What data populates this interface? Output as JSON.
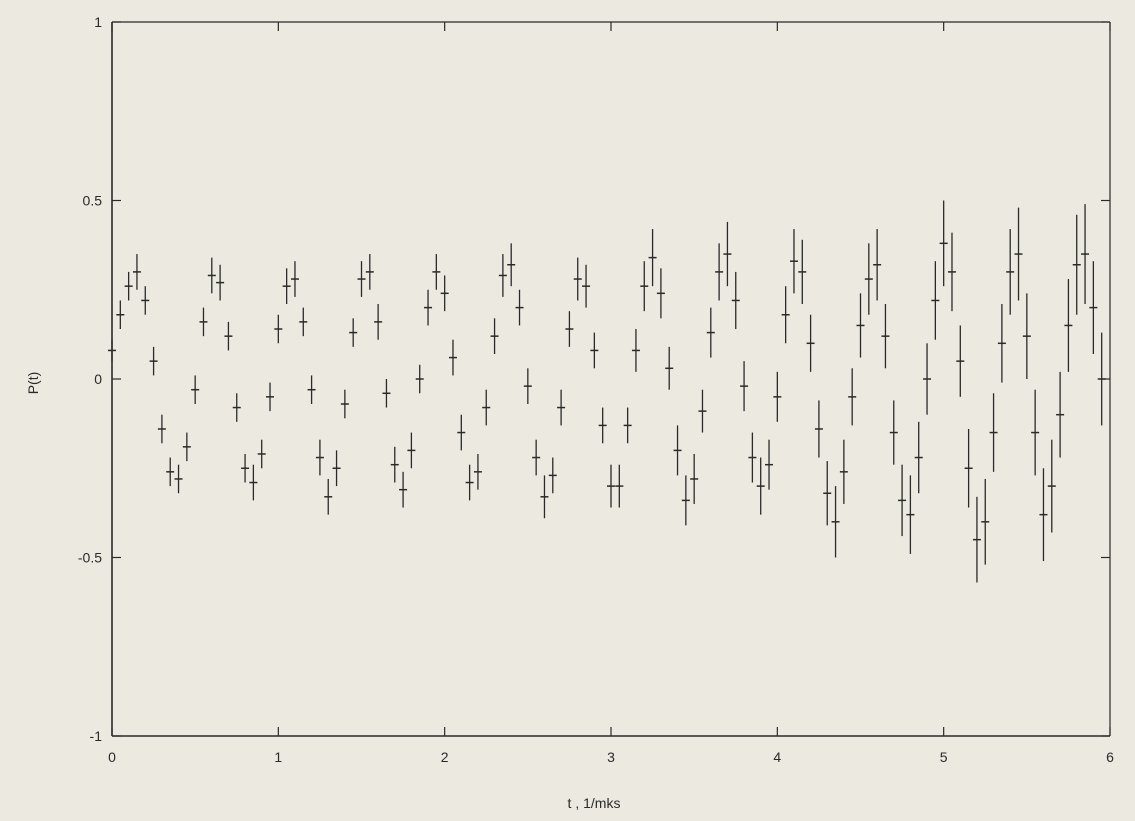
{
  "chart_data": {
    "type": "scatter",
    "title": "",
    "xlabel": "t , 1/mks",
    "ylabel": "P(t)",
    "xlim": [
      0,
      6
    ],
    "ylim": [
      -1,
      1
    ],
    "x_ticks": [
      "0",
      "1",
      "2",
      "3",
      "4",
      "5",
      "6"
    ],
    "y_ticks": [
      "-1",
      "-0.5",
      "0",
      "0.5",
      "1"
    ],
    "grid": false,
    "legend": "none",
    "error_bars": true,
    "colors": {
      "background": "#ece9e1",
      "ink": "#2a2a2a"
    },
    "series": [
      {
        "points": [
          [
            0.0,
            0.08,
            0.03
          ],
          [
            0.05,
            0.18,
            0.04
          ],
          [
            0.1,
            0.26,
            0.04
          ],
          [
            0.15,
            0.3,
            0.05
          ],
          [
            0.2,
            0.22,
            0.04
          ],
          [
            0.25,
            0.05,
            0.04
          ],
          [
            0.3,
            -0.14,
            0.04
          ],
          [
            0.35,
            -0.26,
            0.04
          ],
          [
            0.4,
            -0.28,
            0.04
          ],
          [
            0.45,
            -0.19,
            0.04
          ],
          [
            0.5,
            -0.03,
            0.04
          ],
          [
            0.55,
            0.16,
            0.04
          ],
          [
            0.6,
            0.29,
            0.05
          ],
          [
            0.65,
            0.27,
            0.05
          ],
          [
            0.7,
            0.12,
            0.04
          ],
          [
            0.75,
            -0.08,
            0.04
          ],
          [
            0.8,
            -0.25,
            0.04
          ],
          [
            0.85,
            -0.29,
            0.05
          ],
          [
            0.9,
            -0.21,
            0.04
          ],
          [
            0.95,
            -0.05,
            0.04
          ],
          [
            1.0,
            0.14,
            0.04
          ],
          [
            1.05,
            0.26,
            0.05
          ],
          [
            1.1,
            0.28,
            0.05
          ],
          [
            1.15,
            0.16,
            0.04
          ],
          [
            1.2,
            -0.03,
            0.04
          ],
          [
            1.25,
            -0.22,
            0.05
          ],
          [
            1.3,
            -0.33,
            0.05
          ],
          [
            1.35,
            -0.25,
            0.05
          ],
          [
            1.4,
            -0.07,
            0.04
          ],
          [
            1.45,
            0.13,
            0.04
          ],
          [
            1.5,
            0.28,
            0.05
          ],
          [
            1.55,
            0.3,
            0.05
          ],
          [
            1.6,
            0.16,
            0.05
          ],
          [
            1.65,
            -0.04,
            0.04
          ],
          [
            1.7,
            -0.24,
            0.05
          ],
          [
            1.75,
            -0.31,
            0.05
          ],
          [
            1.8,
            -0.2,
            0.05
          ],
          [
            1.85,
            0.0,
            0.04
          ],
          [
            1.9,
            0.2,
            0.05
          ],
          [
            1.95,
            0.3,
            0.05
          ],
          [
            2.0,
            0.24,
            0.05
          ],
          [
            2.05,
            0.06,
            0.05
          ],
          [
            2.1,
            -0.15,
            0.05
          ],
          [
            2.15,
            -0.29,
            0.05
          ],
          [
            2.2,
            -0.26,
            0.05
          ],
          [
            2.25,
            -0.08,
            0.05
          ],
          [
            2.3,
            0.12,
            0.05
          ],
          [
            2.35,
            0.29,
            0.06
          ],
          [
            2.4,
            0.32,
            0.06
          ],
          [
            2.45,
            0.2,
            0.05
          ],
          [
            2.5,
            -0.02,
            0.05
          ],
          [
            2.55,
            -0.22,
            0.05
          ],
          [
            2.6,
            -0.33,
            0.06
          ],
          [
            2.65,
            -0.27,
            0.05
          ],
          [
            2.7,
            -0.08,
            0.05
          ],
          [
            2.75,
            0.14,
            0.05
          ],
          [
            2.8,
            0.28,
            0.06
          ],
          [
            2.85,
            0.26,
            0.06
          ],
          [
            2.9,
            0.08,
            0.05
          ],
          [
            2.95,
            -0.13,
            0.05
          ],
          [
            3.0,
            -0.3,
            0.06
          ],
          [
            3.05,
            -0.3,
            0.06
          ],
          [
            3.1,
            -0.13,
            0.05
          ],
          [
            3.15,
            0.08,
            0.06
          ],
          [
            3.2,
            0.26,
            0.07
          ],
          [
            3.25,
            0.34,
            0.08
          ],
          [
            3.3,
            0.24,
            0.07
          ],
          [
            3.35,
            0.03,
            0.06
          ],
          [
            3.4,
            -0.2,
            0.07
          ],
          [
            3.45,
            -0.34,
            0.07
          ],
          [
            3.5,
            -0.28,
            0.07
          ],
          [
            3.55,
            -0.09,
            0.06
          ],
          [
            3.6,
            0.13,
            0.07
          ],
          [
            3.65,
            0.3,
            0.08
          ],
          [
            3.7,
            0.35,
            0.09
          ],
          [
            3.75,
            0.22,
            0.08
          ],
          [
            3.8,
            -0.02,
            0.07
          ],
          [
            3.85,
            -0.22,
            0.07
          ],
          [
            3.9,
            -0.3,
            0.08
          ],
          [
            3.95,
            -0.24,
            0.07
          ],
          [
            4.0,
            -0.05,
            0.07
          ],
          [
            4.05,
            0.18,
            0.08
          ],
          [
            4.1,
            0.33,
            0.09
          ],
          [
            4.15,
            0.3,
            0.09
          ],
          [
            4.2,
            0.1,
            0.08
          ],
          [
            4.25,
            -0.14,
            0.08
          ],
          [
            4.3,
            -0.32,
            0.09
          ],
          [
            4.35,
            -0.4,
            0.1
          ],
          [
            4.4,
            -0.26,
            0.09
          ],
          [
            4.45,
            -0.05,
            0.08
          ],
          [
            4.5,
            0.15,
            0.09
          ],
          [
            4.55,
            0.28,
            0.1
          ],
          [
            4.6,
            0.32,
            0.1
          ],
          [
            4.65,
            0.12,
            0.09
          ],
          [
            4.7,
            -0.15,
            0.09
          ],
          [
            4.75,
            -0.34,
            0.1
          ],
          [
            4.8,
            -0.38,
            0.11
          ],
          [
            4.85,
            -0.22,
            0.1
          ],
          [
            4.9,
            0.0,
            0.1
          ],
          [
            4.95,
            0.22,
            0.11
          ],
          [
            5.0,
            0.38,
            0.12
          ],
          [
            5.05,
            0.3,
            0.11
          ],
          [
            5.1,
            0.05,
            0.1
          ],
          [
            5.15,
            -0.25,
            0.11
          ],
          [
            5.2,
            -0.45,
            0.12
          ],
          [
            5.25,
            -0.4,
            0.12
          ],
          [
            5.3,
            -0.15,
            0.11
          ],
          [
            5.35,
            0.1,
            0.11
          ],
          [
            5.4,
            0.3,
            0.12
          ],
          [
            5.45,
            0.35,
            0.13
          ],
          [
            5.5,
            0.12,
            0.12
          ],
          [
            5.55,
            -0.15,
            0.12
          ],
          [
            5.6,
            -0.38,
            0.13
          ],
          [
            5.65,
            -0.3,
            0.13
          ],
          [
            5.7,
            -0.1,
            0.12
          ],
          [
            5.75,
            0.15,
            0.13
          ],
          [
            5.8,
            0.32,
            0.14
          ],
          [
            5.85,
            0.35,
            0.14
          ],
          [
            5.9,
            0.2,
            0.13
          ],
          [
            5.95,
            0.0,
            0.13
          ]
        ]
      }
    ]
  }
}
